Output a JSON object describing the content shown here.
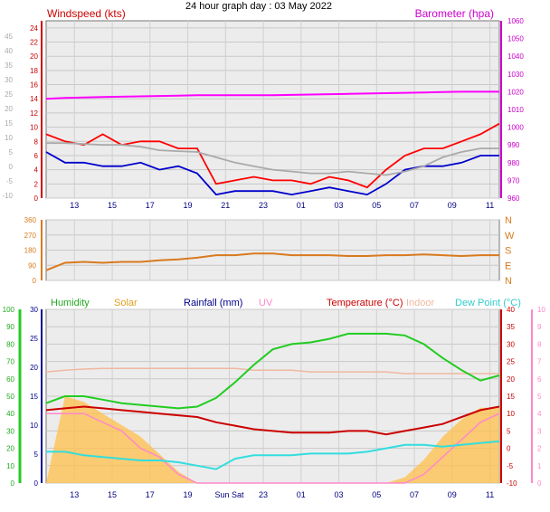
{
  "page_title": "24 hour graph day : 03 May 2022",
  "colors": {
    "wind": "#ff0000",
    "gust_avg": "#0000cc",
    "baro": "#ff00ff",
    "baro_text": "#cc00cc",
    "direction": "#d87a1e",
    "humidity": "#22cc22",
    "solar": "#ffc04a",
    "rain": "#00008b",
    "uv": "#ff88cc",
    "temperature": "#cc0000",
    "indoor": "#f0b8a0",
    "dewpoint": "#33dddd",
    "background": "#e9e9e9"
  },
  "chart_data": [
    {
      "type": "line",
      "panel": "wind-baro",
      "title": "Windspeed (kts)",
      "right_title": "Barometer (hpa)",
      "x_ticks": [
        "13",
        "15",
        "17",
        "19",
        "21",
        "23",
        "01",
        "03",
        "05",
        "07",
        "09",
        "11"
      ],
      "y_left_ticks": [
        "0",
        "2",
        "4",
        "6",
        "8",
        "10",
        "12",
        "14",
        "16",
        "18",
        "20",
        "22",
        "24"
      ],
      "y_left_far_ticks": [
        "-10",
        "-5",
        "0",
        "5",
        "10",
        "15",
        "20",
        "25",
        "30",
        "35",
        "40",
        "45"
      ],
      "y_right_ticks": [
        "960",
        "970",
        "980",
        "990",
        "1000",
        "1010",
        "1020",
        "1030",
        "1040",
        "1050",
        "1060"
      ],
      "ylim": [
        0,
        25
      ],
      "y_right_lim": [
        960,
        1060
      ],
      "x": [
        11.5,
        12.5,
        13.5,
        14.5,
        15.5,
        16.5,
        17.5,
        18.5,
        19.5,
        20.5,
        21.5,
        22.5,
        23.5,
        24.5,
        25.5,
        26.5,
        27.5,
        28.5,
        29.5,
        30.5,
        31.5,
        32.5,
        33.5,
        34.5,
        35.5
      ],
      "series": [
        {
          "name": "Windspeed (kts)",
          "values": [
            9,
            8,
            7.5,
            9,
            7.5,
            8,
            8,
            7,
            7,
            2,
            2.5,
            3,
            2.5,
            2.5,
            2,
            3,
            2.5,
            1.5,
            4,
            6,
            7,
            7,
            8,
            9,
            10.5
          ]
        },
        {
          "name": "",
          "values": [
            6.5,
            5,
            5,
            4.5,
            4.5,
            5,
            4,
            4.5,
            3.5,
            0.5,
            1,
            1,
            1,
            0.5,
            1,
            1.5,
            1,
            0.5,
            2,
            4,
            4.5,
            4.5,
            5,
            6,
            6
          ]
        },
        {
          "name": "Barometer (hpa)",
          "values": [
            1016,
            1016.5,
            1016.8,
            1017,
            1017.2,
            1017.4,
            1017.6,
            1017.8,
            1018,
            1018,
            1018,
            1018,
            1018,
            1018.2,
            1018.4,
            1018.6,
            1018.8,
            1019,
            1019.2,
            1019.4,
            1019.6,
            1019.8,
            1020,
            1020,
            1020
          ]
        },
        {
          "name": "",
          "values": [
            991,
            991,
            990.5,
            990,
            990,
            989,
            987,
            986.5,
            986,
            983,
            980,
            978,
            976,
            975,
            974,
            974,
            975,
            974,
            973,
            975,
            978,
            983,
            986,
            988,
            988
          ]
        }
      ]
    },
    {
      "type": "line",
      "panel": "direction",
      "right_ticks": [
        "N",
        "W",
        "S",
        "E",
        "N"
      ],
      "y_ticks": [
        "0",
        "90",
        "180",
        "270",
        "360"
      ],
      "ylim": [
        0,
        360
      ],
      "x": [
        11.5,
        12.5,
        13.5,
        14.5,
        15.5,
        16.5,
        17.5,
        18.5,
        19.5,
        20.5,
        21.5,
        22.5,
        23.5,
        24.5,
        25.5,
        26.5,
        27.5,
        28.5,
        29.5,
        30.5,
        31.5,
        32.5,
        33.5,
        34.5,
        35.5
      ],
      "series": [
        {
          "name": "",
          "values": [
            60,
            105,
            110,
            105,
            110,
            110,
            120,
            125,
            135,
            150,
            150,
            160,
            160,
            150,
            150,
            150,
            145,
            145,
            150,
            150,
            155,
            150,
            145,
            150,
            150
          ]
        }
      ]
    },
    {
      "type": "line",
      "panel": "temp-humidity",
      "legend": [
        "Humidity",
        "Solar",
        "Rainfall (mm)",
        "UV",
        "Temperature (°C)",
        "Indoor",
        "Dew Point (°C)"
      ],
      "x_ticks": [
        "13",
        "15",
        "17",
        "19",
        "Sun Sat",
        "23",
        "01",
        "03",
        "05",
        "07",
        "09",
        "11"
      ],
      "y_hum_ticks": [
        "0",
        "10",
        "20",
        "30",
        "40",
        "50",
        "60",
        "70",
        "80",
        "90",
        "100"
      ],
      "y_rain_ticks": [
        "0",
        "5",
        "10",
        "15",
        "20",
        "25",
        "30"
      ],
      "y_temp_ticks": [
        "-10",
        "-5",
        "0",
        "5",
        "10",
        "15",
        "20",
        "25",
        "30",
        "35",
        "40"
      ],
      "y_uv_ticks": [
        "0",
        "1",
        "2",
        "3",
        "4",
        "5",
        "6",
        "7",
        "8",
        "9",
        "10"
      ],
      "ylim": [
        -10,
        40
      ],
      "x": [
        11.5,
        12.5,
        13.5,
        14.5,
        15.5,
        16.5,
        17.5,
        18.5,
        19.5,
        20.5,
        21.5,
        22.5,
        23.5,
        24.5,
        25.5,
        26.5,
        27.5,
        28.5,
        29.5,
        30.5,
        31.5,
        32.5,
        33.5,
        34.5,
        35.5
      ],
      "series": [
        {
          "name": "Temperature (°C)",
          "values": [
            11,
            11.5,
            12,
            11.5,
            11,
            10.5,
            10,
            9.5,
            9,
            7.5,
            6.5,
            5.5,
            5,
            4.5,
            4.5,
            4.5,
            5,
            5,
            4,
            5,
            6,
            7,
            9,
            11,
            12
          ]
        },
        {
          "name": "Humidity",
          "values": [
            46,
            50,
            50,
            48,
            46,
            45,
            44,
            43,
            44,
            49,
            58,
            68,
            77,
            80,
            81,
            83,
            86,
            86,
            86,
            85,
            80,
            72,
            65,
            59,
            62
          ]
        },
        {
          "name": "Dew Point (°C)",
          "values": [
            -1,
            -1,
            -2,
            -2.5,
            -3,
            -3.5,
            -3.5,
            -4,
            -5,
            -6,
            -3,
            -2,
            -2,
            -2,
            -1.5,
            -1.5,
            -1.5,
            -1,
            0,
            1,
            1,
            0.5,
            1,
            1.5,
            2
          ]
        },
        {
          "name": "Indoor",
          "values": [
            22,
            22.5,
            22.8,
            23,
            23,
            23,
            23,
            23,
            23,
            23,
            23,
            22.5,
            22.5,
            22.5,
            22,
            22,
            22,
            22,
            22,
            21.5,
            21.5,
            21.5,
            21.5,
            21.5,
            21.5
          ]
        },
        {
          "name": "Solar",
          "values": [
            0,
            15,
            14,
            12,
            10,
            8,
            5,
            2,
            0,
            0,
            0,
            0,
            0,
            0,
            0,
            0,
            0,
            0,
            0,
            1,
            4,
            8,
            11,
            13,
            13
          ]
        },
        {
          "name": "UV",
          "values": [
            4,
            4,
            4,
            3.5,
            3,
            2,
            1.5,
            0.5,
            0,
            0,
            0,
            0,
            0,
            0,
            0,
            0,
            0,
            0,
            0,
            0,
            0.5,
            1.5,
            2.5,
            3.5,
            4
          ]
        }
      ]
    }
  ]
}
